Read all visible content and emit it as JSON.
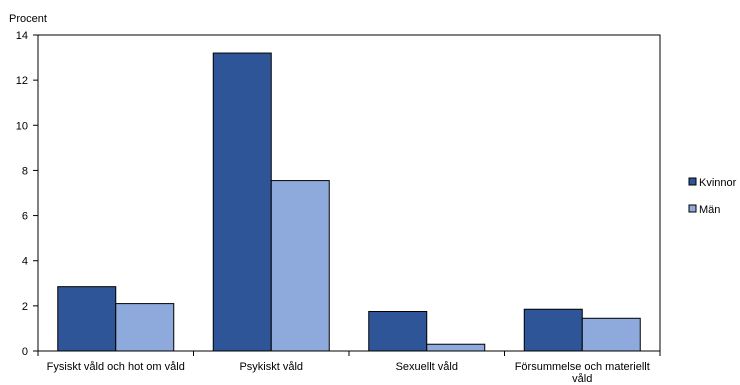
{
  "chart_data": {
    "type": "bar",
    "ylabel": "Procent",
    "ylim": [
      0,
      14
    ],
    "yticks": [
      0,
      2,
      4,
      6,
      8,
      10,
      12,
      14
    ],
    "grid": false,
    "legend_position": "right",
    "categories": [
      [
        "Fysiskt våld och hot om våld"
      ],
      [
        "Psykiskt våld"
      ],
      [
        "Sexuellt våld"
      ],
      [
        "Försummelse och materiellt",
        "våld"
      ]
    ],
    "series": [
      {
        "name": "Kvinnor",
        "color": "#2e5597",
        "values": [
          2.85,
          13.2,
          1.75,
          1.85
        ]
      },
      {
        "name": "Män",
        "color": "#8ea9db",
        "values": [
          2.1,
          7.55,
          0.3,
          1.45
        ]
      }
    ]
  }
}
